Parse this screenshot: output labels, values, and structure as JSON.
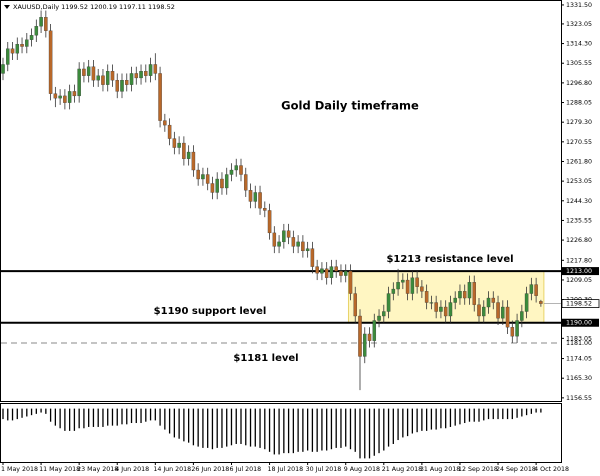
{
  "chart_data": {
    "type": "candlestick",
    "header": "XAUUSD,Daily  1199.52 1200.19 1197.11 1198.52",
    "annotations": [
      "Gold Daily timeframe",
      "$1213 resistance level",
      "$1190 support level",
      "$1181 level"
    ],
    "categories": [
      "1 May 2018",
      null,
      null,
      null,
      null,
      null,
      null,
      null,
      "11 May 2018",
      null,
      null,
      null,
      null,
      null,
      null,
      null,
      "23 May 2018",
      null,
      null,
      null,
      null,
      null,
      null,
      null,
      "4 Jun 2018",
      null,
      null,
      null,
      null,
      null,
      null,
      null,
      "14 Jun 2018",
      null,
      null,
      null,
      null,
      null,
      null,
      null,
      "26 Jun 2018",
      null,
      null,
      null,
      null,
      null,
      null,
      null,
      "6 Jul 2018",
      null,
      null,
      null,
      null,
      null,
      null,
      null,
      "18 Jul 2018",
      null,
      null,
      null,
      null,
      null,
      null,
      null,
      "30 Jul 2018",
      null,
      null,
      null,
      null,
      null,
      null,
      null,
      "9 Aug 2018",
      null,
      null,
      null,
      null,
      null,
      null,
      null,
      "21 Aug 2018",
      null,
      null,
      null,
      null,
      null,
      null,
      null,
      "31 Aug 2018",
      null,
      null,
      null,
      null,
      null,
      null,
      null,
      "12 Sep 2018",
      null,
      null,
      null,
      null,
      null,
      null,
      null,
      "24 Sep 2018",
      null,
      null,
      null,
      null,
      null,
      null,
      null,
      "4 Oct 2018",
      null
    ],
    "open": [
      1301,
      1305,
      1312,
      1310,
      1314,
      1313,
      1316,
      1318,
      1322,
      1326,
      1320,
      1292,
      1290,
      1291,
      1288,
      1293,
      1291,
      1303,
      1300,
      1304,
      1298,
      1300,
      1296,
      1302,
      1298,
      1293,
      1298,
      1296,
      1301,
      1299,
      1302,
      1300,
      1305,
      1301,
      1280,
      1278,
      1272,
      1268,
      1270,
      1263,
      1266,
      1258,
      1254,
      1256,
      1252,
      1248,
      1254,
      1250,
      1256,
      1258,
      1260,
      1256,
      1249,
      1244,
      1248,
      1241,
      1240,
      1230,
      1224,
      1226,
      1231,
      1228,
      1224,
      1226,
      1222,
      1223,
      1215,
      1212,
      1214,
      1210,
      1215,
      1213,
      1211,
      1213,
      1203,
      1193,
      1175,
      1185,
      1182,
      1191,
      1193,
      1195,
      1203,
      1205,
      1208,
      1209,
      1203,
      1210,
      1206,
      1204,
      1199,
      1199,
      1195,
      1197,
      1193,
      1199,
      1201,
      1204,
      1201,
      1208,
      1198,
      1193,
      1197,
      1201,
      1199,
      1192,
      1197,
      1188,
      1184,
      1191,
      1195,
      1203,
      1207,
      1199.52
    ],
    "high": [
      1308,
      1315,
      1315,
      1317,
      1317,
      1319,
      1321,
      1325,
      1329,
      1329,
      1323,
      1295,
      1294,
      1294,
      1296,
      1296,
      1306,
      1306,
      1307,
      1307,
      1303,
      1303,
      1305,
      1305,
      1301,
      1301,
      1301,
      1304,
      1304,
      1305,
      1305,
      1308,
      1310,
      1304,
      1283,
      1281,
      1275,
      1273,
      1273,
      1269,
      1269,
      1261,
      1259,
      1259,
      1255,
      1257,
      1257,
      1259,
      1261,
      1263,
      1263,
      1259,
      1252,
      1251,
      1251,
      1244,
      1243,
      1233,
      1229,
      1234,
      1234,
      1231,
      1229,
      1229,
      1226,
      1226,
      1218,
      1217,
      1217,
      1218,
      1218,
      1216,
      1216,
      1216,
      1206,
      1196,
      1188,
      1188,
      1194,
      1196,
      1198,
      1206,
      1208,
      1214,
      1212,
      1212,
      1213,
      1213,
      1209,
      1207,
      1202,
      1202,
      1200,
      1200,
      1202,
      1204,
      1207,
      1207,
      1211,
      1211,
      1201,
      1200,
      1204,
      1204,
      1202,
      1200,
      1200,
      1191,
      1194,
      1198,
      1206,
      1210,
      1210,
      1200.19
    ],
    "low": [
      1298,
      1302,
      1307,
      1307,
      1310,
      1310,
      1313,
      1315,
      1319,
      1317,
      1289,
      1286,
      1287,
      1285,
      1285,
      1288,
      1288,
      1297,
      1297,
      1295,
      1295,
      1293,
      1293,
      1295,
      1290,
      1290,
      1293,
      1293,
      1296,
      1296,
      1297,
      1297,
      1298,
      1277,
      1275,
      1269,
      1265,
      1265,
      1260,
      1260,
      1255,
      1251,
      1251,
      1249,
      1245,
      1245,
      1247,
      1247,
      1253,
      1255,
      1253,
      1246,
      1241,
      1241,
      1238,
      1237,
      1227,
      1221,
      1221,
      1223,
      1225,
      1221,
      1221,
      1219,
      1219,
      1212,
      1209,
      1209,
      1207,
      1207,
      1210,
      1208,
      1208,
      1200,
      1190,
      1160,
      1172,
      1179,
      1179,
      1188,
      1190,
      1192,
      1200,
      1202,
      1205,
      1200,
      1200,
      1203,
      1201,
      1196,
      1196,
      1192,
      1192,
      1190,
      1190,
      1196,
      1198,
      1198,
      1198,
      1195,
      1190,
      1190,
      1194,
      1196,
      1189,
      1189,
      1185,
      1181,
      1181,
      1188,
      1192,
      1200,
      1199,
      1197.11
    ],
    "close": [
      1305,
      1312,
      1310,
      1314,
      1313,
      1316,
      1318,
      1322,
      1326,
      1320,
      1292,
      1290,
      1291,
      1288,
      1293,
      1291,
      1303,
      1300,
      1304,
      1298,
      1300,
      1296,
      1302,
      1298,
      1293,
      1298,
      1296,
      1301,
      1299,
      1302,
      1300,
      1305,
      1301,
      1280,
      1278,
      1272,
      1268,
      1270,
      1263,
      1266,
      1258,
      1254,
      1256,
      1252,
      1248,
      1254,
      1250,
      1256,
      1258,
      1260,
      1256,
      1249,
      1244,
      1248,
      1241,
      1240,
      1230,
      1224,
      1226,
      1231,
      1228,
      1224,
      1226,
      1222,
      1223,
      1215,
      1212,
      1214,
      1210,
      1215,
      1213,
      1211,
      1213,
      1203,
      1193,
      1175,
      1185,
      1182,
      1191,
      1193,
      1195,
      1203,
      1205,
      1208,
      1209,
      1203,
      1210,
      1206,
      1204,
      1199,
      1199,
      1195,
      1197,
      1193,
      1199,
      1201,
      1204,
      1201,
      1208,
      1198,
      1193,
      1197,
      1201,
      1199,
      1192,
      1197,
      1188,
      1184,
      1191,
      1195,
      1203,
      1207,
      1202,
      1198.52
    ],
    "bull_color": "#3c8a3c",
    "bear_color": "#b8682a",
    "ylim": [
      1155.6,
      1333.7
    ],
    "yticks": [
      {
        "value": 1331.5,
        "label": "1331.50"
      },
      {
        "value": 1323.05,
        "label": "1323.05"
      },
      {
        "value": 1314.3,
        "label": "1314.30"
      },
      {
        "value": 1305.55,
        "label": "1305.55"
      },
      {
        "value": 1296.8,
        "label": "1296.80"
      },
      {
        "value": 1288.05,
        "label": "1288.05"
      },
      {
        "value": 1279.3,
        "label": "1279.30"
      },
      {
        "value": 1270.55,
        "label": "1270.55"
      },
      {
        "value": 1261.8,
        "label": "1261.80"
      },
      {
        "value": 1253.05,
        "label": "1253.05"
      },
      {
        "value": 1244.3,
        "label": "1244.30"
      },
      {
        "value": 1235.55,
        "label": "1235.55"
      },
      {
        "value": 1226.8,
        "label": "1226.80"
      },
      {
        "value": 1217.8,
        "label": "1217.80"
      },
      {
        "value": 1209.05,
        "label": "1209.05"
      },
      {
        "value": 1200.3,
        "label": "1200.30"
      },
      {
        "value": 1183.05,
        "label": "1183.05"
      },
      {
        "value": 1174.05,
        "label": "1174.05"
      },
      {
        "value": 1165.3,
        "label": "1165.30"
      },
      {
        "value": 1156.55,
        "label": "1156.55"
      }
    ],
    "levels": [
      {
        "value": 1213,
        "label": "1213.00",
        "style": "solid"
      },
      {
        "value": 1190,
        "label": "1190.00",
        "style": "solid"
      },
      {
        "value": 1181,
        "label": "1181.00",
        "style": "dashed"
      }
    ],
    "zone": [
      1190,
      1213
    ],
    "zone_color": "#fff6c2",
    "last_price": {
      "value": 1198.52,
      "label": "1198.52"
    },
    "indicator": {
      "values": [
        -8,
        -9,
        -9,
        -8,
        -7,
        -6,
        -5,
        -4,
        -3,
        -4,
        -10,
        -13,
        -15,
        -17,
        -17,
        -17,
        -15,
        -15,
        -14,
        -14,
        -14,
        -14,
        -13,
        -13,
        -13,
        -12,
        -12,
        -11,
        -11,
        -11,
        -10,
        -9,
        -9,
        -13,
        -16,
        -19,
        -22,
        -23,
        -25,
        -26,
        -28,
        -29,
        -30,
        -30,
        -31,
        -30,
        -30,
        -29,
        -28,
        -27,
        -27,
        -28,
        -29,
        -29,
        -30,
        -31,
        -33,
        -35,
        -35,
        -34,
        -34,
        -34,
        -33,
        -33,
        -32,
        -33,
        -33,
        -32,
        -32,
        -31,
        -30,
        -30,
        -29,
        -31,
        -33,
        -38,
        -38,
        -38,
        -36,
        -34,
        -32,
        -29,
        -27,
        -24,
        -22,
        -21,
        -19,
        -18,
        -17,
        -17,
        -16,
        -16,
        -15,
        -15,
        -14,
        -13,
        -12,
        -11,
        -10,
        -10,
        -10,
        -9,
        -8,
        -8,
        -8,
        -8,
        -8,
        -8,
        -7,
        -6,
        -5,
        -4,
        -3,
        -3
      ],
      "ylim": [
        -40,
        2
      ],
      "color": "#000000"
    }
  }
}
